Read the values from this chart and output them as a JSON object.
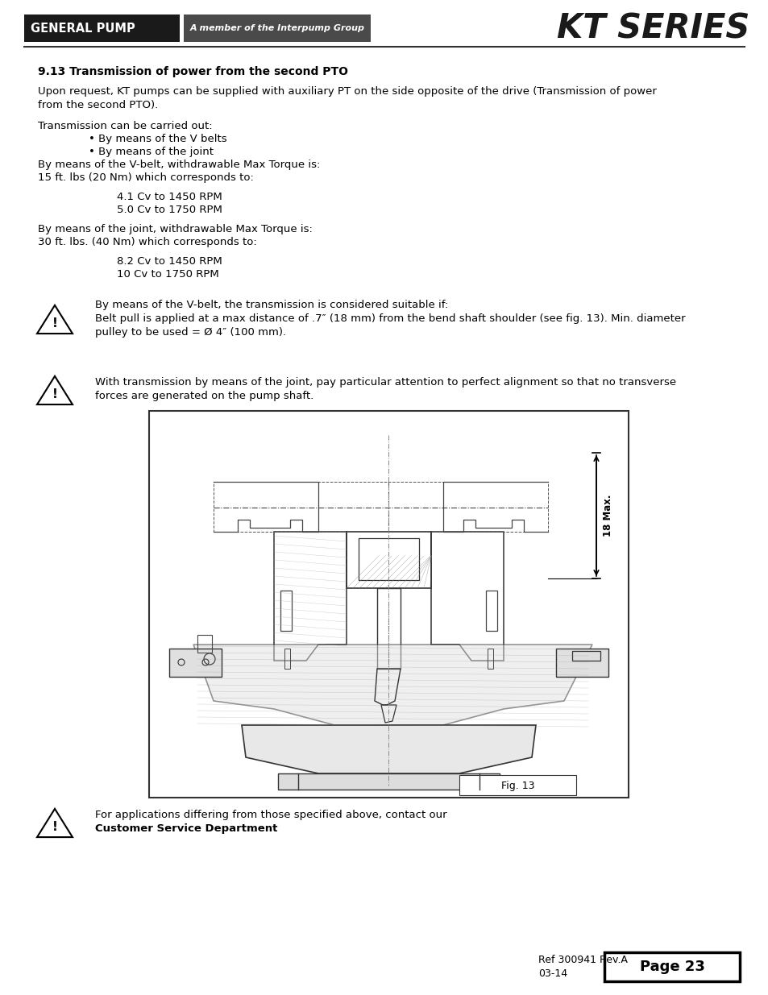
{
  "bg_color": "#ffffff",
  "header": {
    "brand_text": "GENERAL PUMP",
    "brand_bg": "#1a1a1a",
    "brand_fg": "#ffffff",
    "tagline": "A member of the Interpump Group",
    "tagline_bg": "#4a4a4a",
    "tagline_fg": "#ffffff",
    "title": "KT SERIES",
    "title_color": "#1a1a1a"
  },
  "section_title": "9.13 Transmission of power from the second PTO",
  "footer": {
    "ref_text": "Ref 300941 Rev.A",
    "date_text": "03-14",
    "page_text": "Page 23"
  },
  "font_size": 9.5,
  "fig_caption": "Fig. 13",
  "warning_triangle_size": 0.022
}
